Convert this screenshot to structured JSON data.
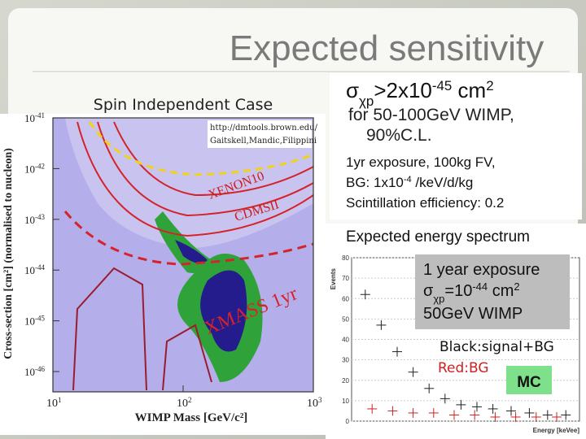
{
  "title": "Expected sensitivity",
  "left_plot": {
    "heading": "Spin Independent Case",
    "y_label": "Cross-section [cm²] (normalised to nucleon)",
    "x_label": "WIMP Mass [GeV/c²]",
    "y_ticks": [
      {
        "base": "10",
        "exponent": "-41"
      },
      {
        "base": "10",
        "exponent": "-42"
      },
      {
        "base": "10",
        "exponent": "-43"
      },
      {
        "base": "10",
        "exponent": "-44"
      },
      {
        "base": "10",
        "exponent": "-45"
      },
      {
        "base": "10",
        "exponent": "-46"
      }
    ],
    "x_ticks": [
      {
        "base": "10",
        "exponent": "1"
      },
      {
        "base": "10",
        "exponent": "2"
      },
      {
        "base": "10",
        "exponent": "3"
      }
    ],
    "source": [
      "http://dmtools.brown.edu/",
      "Gaitskell,Mandic,Filippini"
    ],
    "curve_labels": {
      "xenon": "XENON10",
      "cdms": "CDMSII",
      "xmass": "XMASS 1yr"
    }
  },
  "conditions": {
    "limit": [
      {
        "text": "σ",
        "style": "normal"
      },
      {
        "text": "χp",
        "style": "sub"
      },
      {
        "text": ">2x10",
        "style": "normal"
      },
      {
        "text": "-45",
        "style": "sup"
      },
      {
        "text": " cm",
        "style": "normal"
      },
      {
        "text": "2",
        "style": "sup"
      }
    ],
    "mass_line": "for 50-100GeV WIMP,",
    "cl_line": "90%C.L.",
    "exposure": "1yr exposure, 100kg FV,",
    "background": [
      {
        "text": "BG: 1x10",
        "style": "normal"
      },
      {
        "text": "-4",
        "style": "sup"
      },
      {
        "text": " /keV/d/kg",
        "style": "normal"
      }
    ],
    "scintillation": "Scintillation efficiency: 0.2"
  },
  "spectrum": {
    "heading": "Expected energy spectrum",
    "y_axis_label": "Events",
    "x_axis_label": "Energy [keVee]",
    "ylim": [
      0,
      80
    ],
    "yticks": [
      0,
      10,
      20,
      30,
      40,
      50,
      60,
      70,
      80
    ],
    "xlim": [
      0,
      100
    ],
    "signal_bg": {
      "color": "#222222",
      "x": [
        6,
        13,
        20,
        27,
        34,
        41,
        48,
        55,
        62,
        70,
        78,
        86,
        94
      ],
      "y": [
        62,
        47,
        34,
        24,
        16,
        11,
        8,
        7,
        6,
        5,
        4,
        3,
        3
      ]
    },
    "bg": {
      "color": "#cc2222",
      "x": [
        9,
        18,
        27,
        36,
        45,
        54,
        63,
        72,
        81,
        90
      ],
      "y": [
        6,
        5,
        4,
        4,
        3,
        3,
        2,
        2,
        2,
        2
      ]
    },
    "box": [
      "1 year exposure",
      [
        {
          "text": "σ",
          "style": "normal"
        },
        {
          "text": "χp",
          "style": "sub"
        },
        {
          "text": "=10",
          "style": "normal"
        },
        {
          "text": "-44",
          "style": "sup"
        },
        {
          "text": " cm",
          "style": "normal"
        },
        {
          "text": "2",
          "style": "sup"
        }
      ],
      "50GeV WIMP"
    ],
    "legend_signal": "Black:signal+BG",
    "legend_bg": "Red:BG",
    "badge": "MC"
  }
}
